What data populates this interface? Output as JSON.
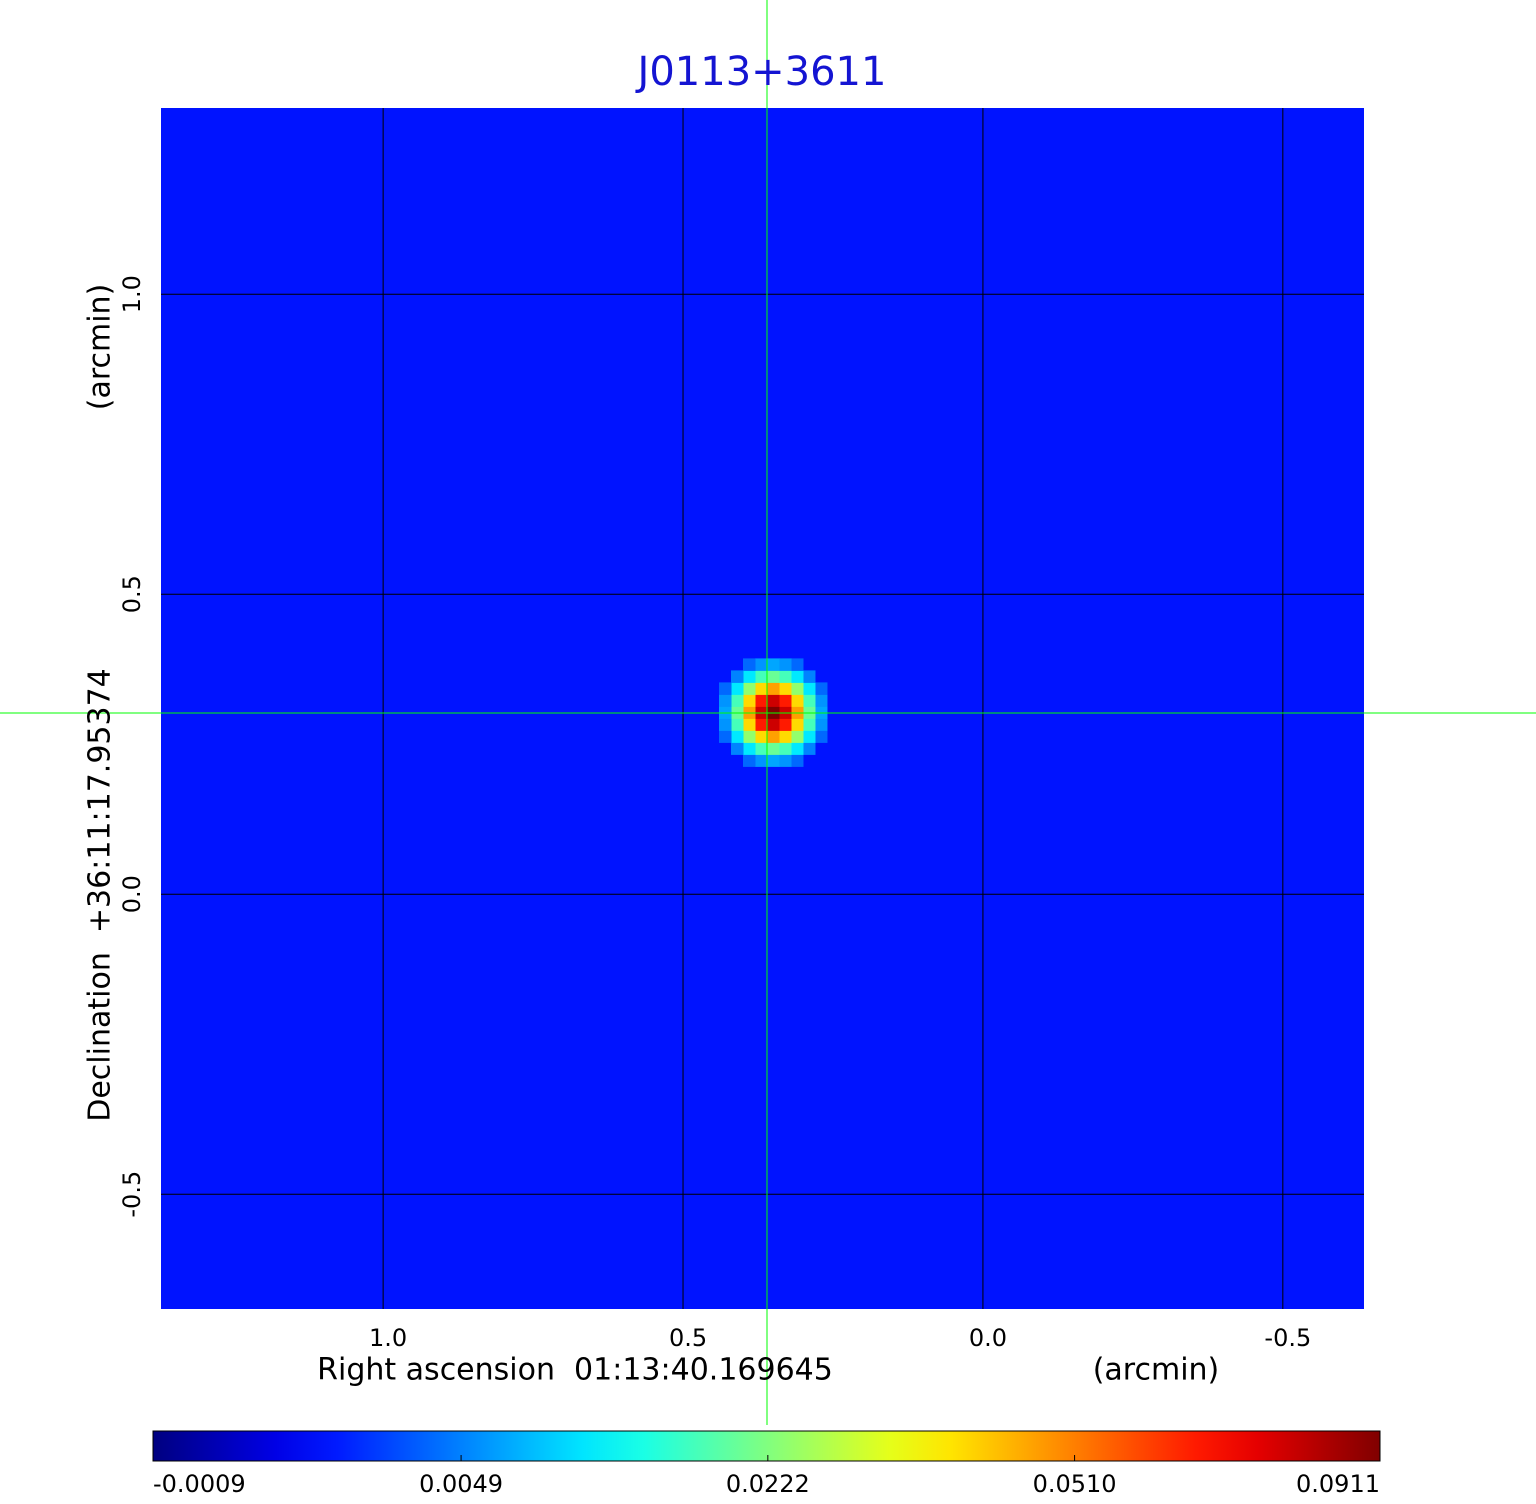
{
  "chart_data": {
    "type": "image",
    "title": "J0113+3611",
    "title_color": "#1414d2",
    "xlabel": "Right ascension  01:13:40.169645",
    "xunit": "(arcmin)",
    "ylabel": "Declination  +36:11:17.95374",
    "yunit": "(arcmin)",
    "xlim": [
      1.372,
      -0.637
    ],
    "ylim": [
      -0.693,
      1.312
    ],
    "xticks": [
      {
        "value": 1,
        "label": "1.0"
      },
      0.5,
      {
        "value": 0,
        "label": "0.0"
      },
      -0.5
    ],
    "yticks": [
      -0.5,
      {
        "value": 0,
        "label": "0.0"
      },
      0.5,
      {
        "value": 1,
        "label": "1.0"
      }
    ],
    "grid": true,
    "image": {
      "background": 0.001,
      "source": {
        "x": 0.35,
        "y": 0.303,
        "peak": 0.0911,
        "fwhm": 0.08
      }
    },
    "crosshair": {
      "x": 0.36,
      "y": 0.302,
      "color": "#00ff00"
    },
    "colorbar": {
      "lim": [
        -0.0009,
        0.0911
      ],
      "scale": "sqrt",
      "ticks": [
        -0.0009,
        0.0049,
        0.0222,
        {
          "value": 0.051,
          "label": "0.0510"
        },
        0.0911
      ]
    }
  }
}
